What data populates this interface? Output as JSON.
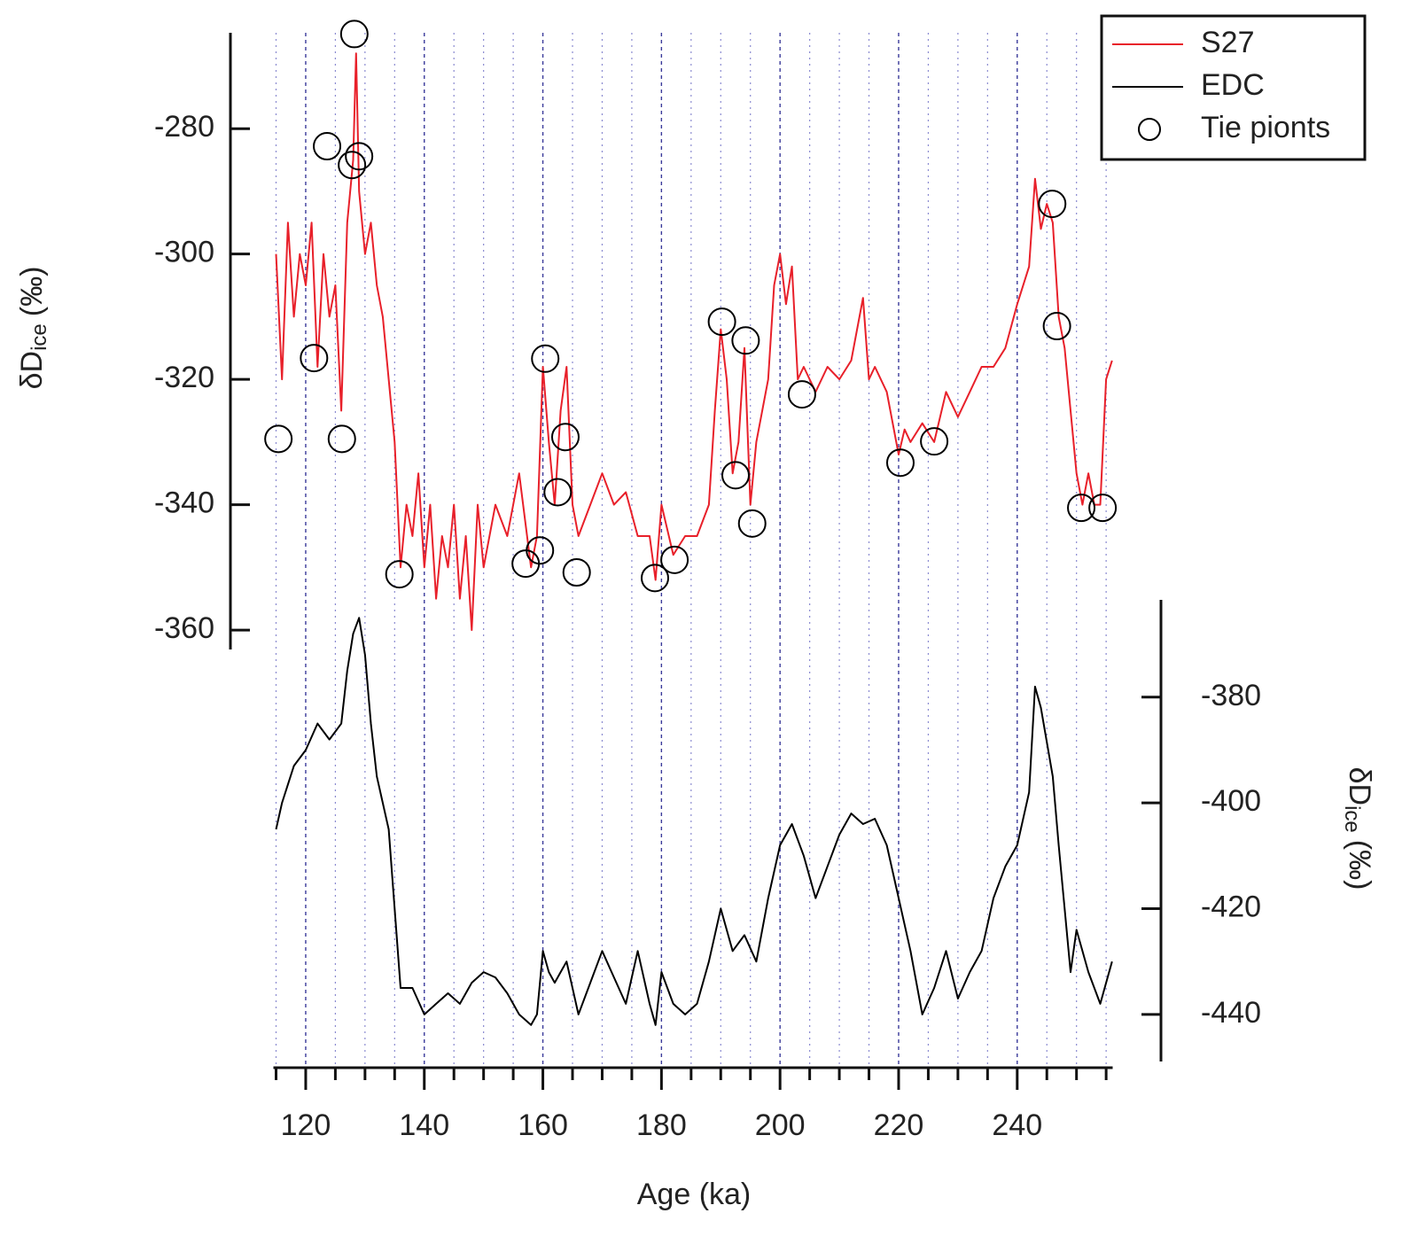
{
  "chart_data": {
    "type": "line",
    "xlabel": "Age (ka)",
    "ylabel": {
      "text": "δD",
      "subscript": "ice",
      "unit": "(‰)"
    },
    "y2label": {
      "text": "δD",
      "subscript": "ice",
      "unit": "(‰)"
    },
    "xlim": [
      115,
      256.1
    ],
    "ylim": [
      -363.1,
      -264.7
    ],
    "y2lim": [
      -448.9,
      -361.6
    ],
    "xticks": [
      120,
      140,
      160,
      180,
      200,
      220,
      240
    ],
    "xminorticks": [
      115,
      125,
      130,
      135,
      145,
      150,
      155,
      165,
      170,
      175,
      185,
      190,
      195,
      205,
      210,
      215,
      225,
      230,
      235,
      245,
      250,
      255
    ],
    "yticks": [
      -360,
      -340,
      -320,
      -300,
      -280
    ],
    "y2ticks": [
      -440,
      -420,
      -400,
      -380
    ],
    "grid": true,
    "legend": "upper right",
    "series": [
      {
        "name": "S27",
        "color": "#e8202a",
        "axis": "y",
        "style": "line",
        "x": [
          115,
          116,
          117,
          118,
          119,
          120,
          121,
          122,
          123,
          124,
          125,
          126,
          127,
          128,
          128.5,
          129,
          130,
          131,
          132,
          133,
          134,
          135,
          136,
          137,
          138,
          139,
          140,
          141,
          142,
          143,
          144,
          145,
          146,
          147,
          148,
          149,
          150,
          152,
          154,
          156,
          158,
          159,
          160,
          161,
          162,
          163,
          164,
          165,
          166,
          168,
          170,
          172,
          174,
          176,
          178,
          179,
          180,
          182,
          184,
          186,
          188,
          189,
          190,
          191,
          192,
          193,
          194,
          195,
          196,
          198,
          199,
          200,
          201,
          202,
          203,
          204,
          206,
          208,
          210,
          212,
          214,
          215,
          216,
          218,
          220,
          221,
          222,
          224,
          226,
          228,
          230,
          232,
          234,
          236,
          238,
          240,
          242,
          243,
          244,
          245,
          246,
          247,
          248,
          249,
          250,
          251,
          252,
          253,
          254,
          255,
          256
        ],
        "values": [
          -300,
          -320,
          -295,
          -310,
          -300,
          -305,
          -295,
          -318,
          -300,
          -310,
          -305,
          -325,
          -295,
          -285,
          -268,
          -290,
          -300,
          -295,
          -305,
          -310,
          -320,
          -330,
          -350,
          -340,
          -345,
          -335,
          -350,
          -340,
          -355,
          -345,
          -350,
          -340,
          -355,
          -345,
          -360,
          -340,
          -350,
          -340,
          -345,
          -335,
          -350,
          -345,
          -318,
          -330,
          -340,
          -325,
          -318,
          -340,
          -345,
          -340,
          -335,
          -340,
          -338,
          -345,
          -345,
          -352,
          -340,
          -348,
          -345,
          -345,
          -340,
          -325,
          -312,
          -320,
          -335,
          -330,
          -315,
          -340,
          -330,
          -320,
          -305,
          -300,
          -308,
          -302,
          -320,
          -318,
          -322,
          -318,
          -320,
          -317,
          -307,
          -320,
          -318,
          -322,
          -332,
          -328,
          -330,
          -327,
          -330,
          -322,
          -326,
          -322,
          -318,
          -318,
          -315,
          -308,
          -302,
          -288,
          -296,
          -292,
          -295,
          -310,
          -315,
          -325,
          -335,
          -340,
          -335,
          -340,
          -340,
          -320,
          -317
        ]
      },
      {
        "name": "EDC",
        "color": "#000000",
        "axis": "y2",
        "style": "line",
        "x": [
          115,
          116,
          118,
          120,
          122,
          124,
          126,
          127,
          128,
          129,
          130,
          131,
          132,
          134,
          135,
          136,
          138,
          140,
          142,
          144,
          146,
          148,
          150,
          152,
          154,
          156,
          158,
          159,
          160,
          161,
          162,
          164,
          166,
          168,
          170,
          172,
          174,
          176,
          178,
          179,
          180,
          182,
          184,
          186,
          188,
          190,
          192,
          194,
          196,
          198,
          200,
          202,
          204,
          206,
          208,
          210,
          212,
          214,
          216,
          218,
          220,
          222,
          224,
          226,
          228,
          230,
          232,
          234,
          236,
          238,
          240,
          242,
          243,
          244,
          246,
          247,
          248,
          249,
          250,
          252,
          254,
          256
        ],
        "values": [
          -405,
          -400,
          -393,
          -390,
          -385,
          -388,
          -385,
          -375,
          -368,
          -365,
          -372,
          -385,
          -395,
          -405,
          -420,
          -435,
          -435,
          -440,
          -438,
          -436,
          -438,
          -434,
          -432,
          -433,
          -436,
          -440,
          -442,
          -440,
          -428,
          -432,
          -434,
          -430,
          -440,
          -434,
          -428,
          -433,
          -438,
          -428,
          -438,
          -442,
          -432,
          -438,
          -440,
          -438,
          -430,
          -420,
          -428,
          -425,
          -430,
          -418,
          -408,
          -404,
          -410,
          -418,
          -412,
          -406,
          -402,
          -404,
          -403,
          -408,
          -418,
          -428,
          -440,
          -435,
          -428,
          -437,
          -432,
          -428,
          -418,
          -412,
          -408,
          -398,
          -378,
          -382,
          -395,
          -408,
          -420,
          -432,
          -424,
          -432,
          -438,
          -430
        ]
      },
      {
        "name": "Tie pionts",
        "color": "#000000",
        "axis": "y",
        "style": "markers",
        "x": [
          115.4,
          121.4,
          123.6,
          126.1,
          127.8,
          128.2,
          129,
          135.8,
          157.1,
          159.5,
          160.4,
          162.5,
          163.8,
          165.7,
          178.9,
          182.2,
          190.2,
          192.5,
          194.2,
          195.3,
          203.7,
          220.3,
          226,
          245.9,
          246.7,
          250.8,
          254.4
        ],
        "values": [
          -329.5,
          -316.6,
          -282.8,
          -329.5,
          -285.8,
          -264.9,
          -284.4,
          -351.1,
          -349.4,
          -347.3,
          -316.7,
          -338,
          -329.2,
          -350.8,
          -351.7,
          -348.8,
          -310.8,
          -335.3,
          -313.8,
          -343,
          -322.4,
          -333.3,
          -329.9,
          -292,
          -311.5,
          -340.5,
          -340.5
        ]
      }
    ]
  }
}
